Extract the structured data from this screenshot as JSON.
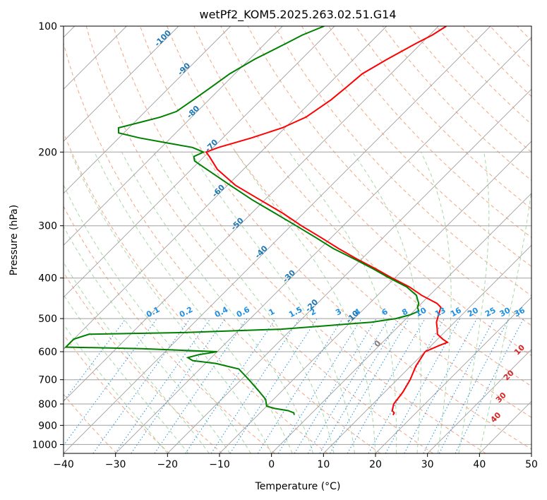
{
  "chart_data": {
    "type": "skew-t",
    "title": "wetPf2_KOM5.2025.263.02.51.G14",
    "xlabel": "Temperature (°C)",
    "ylabel": "Pressure (hPa)",
    "xlim": [
      -40,
      50
    ],
    "ylim": [
      1050,
      100
    ],
    "y_scale": "log",
    "grid": true,
    "x_ticks": [
      -40,
      -30,
      -20,
      -10,
      0,
      10,
      20,
      30,
      40,
      50
    ],
    "y_ticks": [
      100,
      200,
      300,
      400,
      500,
      600,
      700,
      800,
      900,
      1000
    ],
    "colors": {
      "temperature": "#ff0000",
      "dewpoint": "#008000",
      "isotherm": "#a0a0a0",
      "dry_adiabat": "#f4a582",
      "moist_adiabat": "#a6d8a6",
      "mixing_ratio": "#1f8fe0",
      "isotherm_label": "#1f77b4",
      "theta_label": "#d62728"
    },
    "series": [
      {
        "series_key": "temperature",
        "pressure": [
          850,
          840,
          830,
          800,
          750,
          700,
          650,
          600,
          580,
          570,
          560,
          545,
          530,
          510,
          490,
          470,
          460,
          440,
          420,
          400,
          380,
          360,
          340,
          320,
          300,
          280,
          260,
          240,
          220,
          205,
          200,
          195,
          185,
          175,
          165,
          150,
          140,
          130,
          120,
          110,
          105,
          100
        ],
        "temperature": [
          16.0,
          15.8,
          15.0,
          14.0,
          13.5,
          12.5,
          11.0,
          10.0,
          11.5,
          12.5,
          11.0,
          9.0,
          8.0,
          6.5,
          5.5,
          4.5,
          3.0,
          -1.5,
          -5.5,
          -10.5,
          -15.5,
          -21.0,
          -26.5,
          -32.0,
          -38.0,
          -44.0,
          -51.0,
          -58.5,
          -65.0,
          -69.0,
          -70.5,
          -69.0,
          -64.5,
          -60.5,
          -58.0,
          -56.5,
          -56.0,
          -55.5,
          -53.5,
          -51.0,
          -49.5,
          -48.5
        ]
      },
      {
        "series_key": "dewpoint",
        "pressure": [
          850,
          840,
          830,
          820,
          810,
          800,
          780,
          750,
          700,
          660,
          640,
          630,
          620,
          610,
          600,
          590,
          585,
          560,
          545,
          540,
          530,
          520,
          510,
          500,
          490,
          480,
          470,
          460,
          450,
          440,
          420,
          400,
          380,
          360,
          340,
          320,
          300,
          280,
          260,
          240,
          220,
          210,
          205,
          200,
          195,
          190,
          185,
          180,
          175,
          170,
          165,
          160,
          150,
          140,
          130,
          120,
          110,
          105,
          100
        ],
        "dewpoint": [
          -3.0,
          -3.5,
          -5.0,
          -8.0,
          -10.0,
          -10.5,
          -11.5,
          -14.0,
          -18.5,
          -22.5,
          -28.0,
          -33.0,
          -34.5,
          -33.0,
          -30.0,
          -45.0,
          -60.0,
          -60.0,
          -58.0,
          -40.0,
          -22.0,
          -14.0,
          -6.0,
          -2.0,
          0.0,
          1.0,
          0.0,
          -0.5,
          -1.5,
          -2.5,
          -6.0,
          -11.0,
          -16.0,
          -21.5,
          -27.5,
          -33.0,
          -39.0,
          -45.5,
          -52.5,
          -59.5,
          -67.0,
          -71.0,
          -72.0,
          -71.0,
          -74.0,
          -80.0,
          -86.0,
          -91.0,
          -92.0,
          -89.0,
          -86.0,
          -84.0,
          -83.0,
          -82.0,
          -81.0,
          -79.0,
          -76.0,
          -74.5,
          -72.0
        ]
      }
    ],
    "isotherm_labels": [
      "-100",
      "-90",
      "-80",
      "-70",
      "-60",
      "-50",
      "-40",
      "-30",
      "-20",
      "-10",
      "0"
    ],
    "mixing_ratio_labels": [
      "0.1",
      "0.2",
      "0.4",
      "0.6",
      "1",
      "1.5",
      "2",
      "3",
      "4",
      "6",
      "8",
      "10",
      "13",
      "16",
      "20",
      "25",
      "30",
      "36"
    ],
    "theta_e_labels": [
      "10",
      "20",
      "30",
      "40"
    ]
  }
}
